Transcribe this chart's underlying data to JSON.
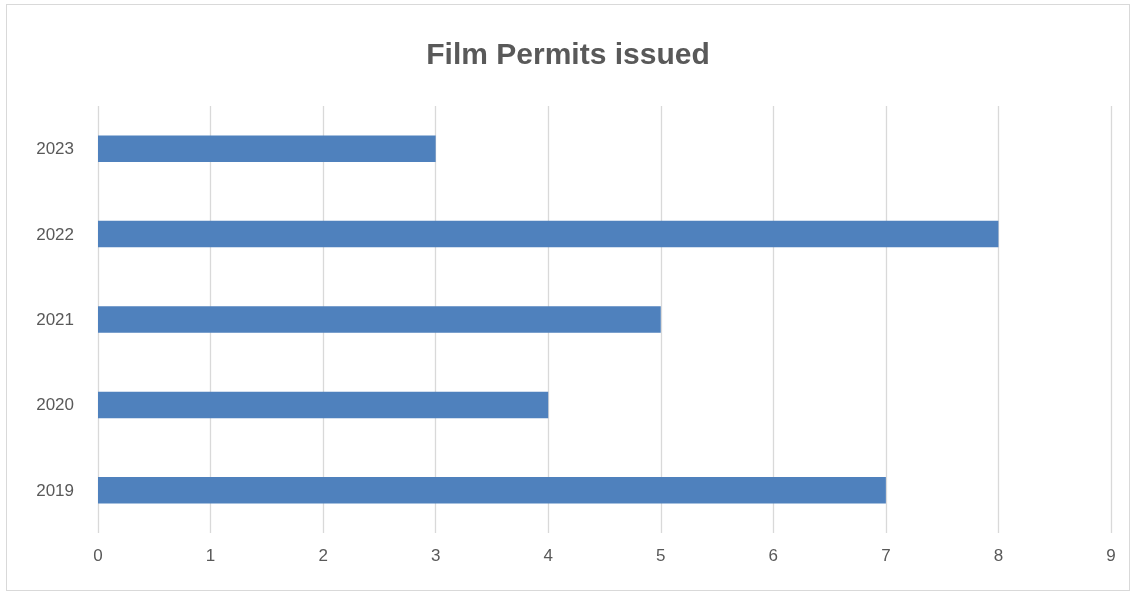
{
  "chart_data": {
    "type": "bar",
    "orientation": "horizontal",
    "title": "Film Permits issued",
    "categories": [
      "2023",
      "2022",
      "2021",
      "2020",
      "2019"
    ],
    "values": [
      3,
      8,
      5,
      4,
      7
    ],
    "color": "#4f81bd",
    "xlim": [
      0,
      9
    ],
    "xticks": [
      0,
      1,
      2,
      3,
      4,
      5,
      6,
      7,
      8,
      9
    ],
    "grid": "x"
  }
}
